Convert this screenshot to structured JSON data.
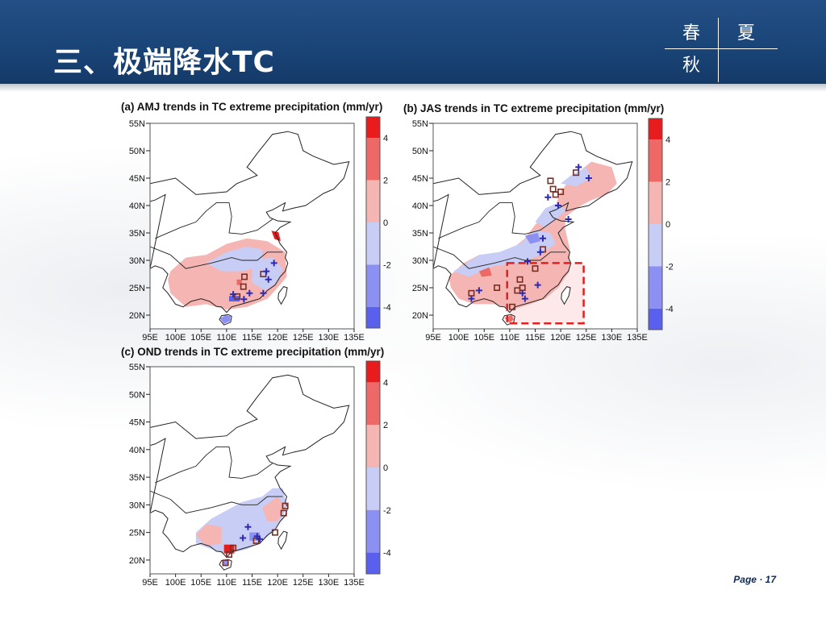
{
  "slide": {
    "title": "三、极端降水TC",
    "seasons": {
      "spring": "春",
      "summer": "夏",
      "autumn": "秋"
    },
    "footer": "Page · 17"
  },
  "colors": {
    "header": "#1a4578",
    "strong_red": "#e81c1c",
    "strong_blue": "#5a60ee",
    "land_pink": "#f5b5b2",
    "land_lavender": "#c8cdf6",
    "increase_marker": "#2e2ab0",
    "decrease_marker": "#7a2e24",
    "highlight_box": "#e02020"
  },
  "chart_data": [
    {
      "type": "heatmap",
      "panel": "a",
      "title": "(a) AMJ trends in TC extreme precipitation (mm/yr)",
      "x_ticks": [
        "95E",
        "100E",
        "105E",
        "110E",
        "115E",
        "120E",
        "125E",
        "130E",
        "135E"
      ],
      "y_ticks": [
        "55N",
        "50N",
        "45N",
        "40N",
        "35N",
        "30N",
        "25N",
        "20N"
      ],
      "xlim": [
        95,
        135
      ],
      "ylim": [
        17.5,
        55
      ],
      "colorbar": {
        "labels": [
          "4",
          "2",
          "0",
          "-2",
          "-4"
        ],
        "levels": [
          5,
          4,
          2,
          0,
          -2,
          -4,
          -5
        ]
      },
      "markers_plus": [
        [
          118.2,
          26.5
        ],
        [
          117.2,
          24.0
        ],
        [
          111.3,
          23.8
        ],
        [
          114.5,
          24.0
        ],
        [
          119.3,
          29.5
        ],
        [
          113.4,
          22.9
        ],
        [
          117.8,
          28.0
        ]
      ],
      "markers_square": [
        [
          113.5,
          27.0
        ],
        [
          113.3,
          25.2
        ],
        [
          117.2,
          27.5
        ],
        [
          112.1,
          23.4
        ]
      ]
    },
    {
      "type": "heatmap",
      "panel": "b",
      "title": "(b) JAS trends in TC extreme precipitation (mm/yr)",
      "x_ticks": [
        "95E",
        "100E",
        "105E",
        "110E",
        "115E",
        "120E",
        "125E",
        "130E",
        "135E"
      ],
      "y_ticks": [
        "55N",
        "50N",
        "45N",
        "40N",
        "35N",
        "30N",
        "25N",
        "20N"
      ],
      "xlim": [
        95,
        135
      ],
      "ylim": [
        17.5,
        55
      ],
      "colorbar": {
        "labels": [
          "4",
          "2",
          "0",
          "-2",
          "-4"
        ],
        "levels": [
          5,
          4,
          2,
          0,
          -2,
          -4,
          -5
        ]
      },
      "highlight_box": {
        "lon": [
          109.5,
          124.5
        ],
        "lat": [
          18.5,
          29.5
        ]
      },
      "markers_plus": [
        [
          123.5,
          47.0
        ],
        [
          125.5,
          45.0
        ],
        [
          117.5,
          41.5
        ],
        [
          119.5,
          40.0
        ],
        [
          121.5,
          37.5
        ],
        [
          116.5,
          34.0
        ],
        [
          116.0,
          31.5
        ],
        [
          113.5,
          29.8
        ],
        [
          102.5,
          23.0
        ],
        [
          112.5,
          24.0
        ],
        [
          113.0,
          23.0
        ],
        [
          104.0,
          24.5
        ],
        [
          115.5,
          25.5
        ]
      ],
      "markers_square": [
        [
          118.0,
          44.5
        ],
        [
          123.0,
          46.0
        ],
        [
          118.5,
          43.0
        ],
        [
          119.0,
          42.0
        ],
        [
          120.0,
          42.5
        ],
        [
          116.5,
          32.0
        ],
        [
          115.0,
          28.5
        ],
        [
          107.5,
          25.0
        ],
        [
          111.5,
          24.5
        ],
        [
          112.5,
          25.0
        ],
        [
          112.0,
          26.5
        ],
        [
          102.5,
          24.0
        ],
        [
          110.5,
          21.5
        ]
      ]
    },
    {
      "type": "heatmap",
      "panel": "c",
      "title": "(c) OND trends in TC extreme precipitation (mm/yr)",
      "x_ticks": [
        "95E",
        "100E",
        "105E",
        "110E",
        "115E",
        "120E",
        "125E",
        "130E",
        "135E"
      ],
      "y_ticks": [
        "55N",
        "50N",
        "45N",
        "40N",
        "35N",
        "30N",
        "25N",
        "20N"
      ],
      "xlim": [
        95,
        135
      ],
      "ylim": [
        17.5,
        55
      ],
      "colorbar": {
        "labels": [
          "4",
          "2",
          "0",
          "-2",
          "-4"
        ],
        "levels": [
          5,
          4,
          2,
          0,
          -2,
          -4,
          -5
        ]
      },
      "markers_plus": [
        [
          114.2,
          26.0
        ],
        [
          113.2,
          24.0
        ],
        [
          116.0,
          24.3
        ],
        [
          116.5,
          23.8
        ]
      ],
      "markers_square": [
        [
          121.5,
          29.8
        ],
        [
          121.2,
          28.5
        ],
        [
          119.5,
          25.0
        ],
        [
          115.8,
          23.5
        ],
        [
          110.5,
          21.0
        ],
        [
          111.3,
          22.2
        ],
        [
          109.8,
          19.5
        ]
      ]
    }
  ]
}
